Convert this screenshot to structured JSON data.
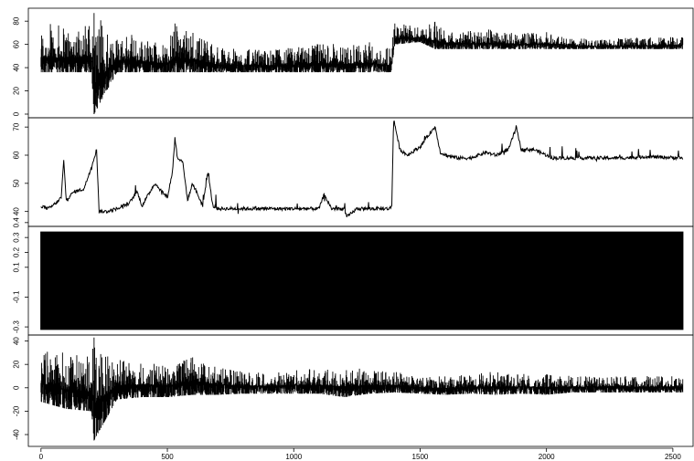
{
  "chart_data": {
    "type": "line",
    "title": "",
    "xlabel": "",
    "ylabel": "",
    "shared_x": {
      "xlim": [
        -50,
        2580
      ],
      "ticks": [
        0,
        500,
        1000,
        1500,
        2000,
        2500
      ],
      "tick_labels": [
        "0",
        "500",
        "1000",
        "1500",
        "2000",
        "2500"
      ]
    },
    "line_color": "#000000",
    "grid": false,
    "panels": [
      {
        "ylim": [
          0,
          88
        ],
        "yticks": [
          0,
          20,
          40,
          60,
          80
        ],
        "ytick_labels": [
          "0",
          "20",
          "40",
          "60",
          "80"
        ],
        "description_values": {
          "x": [
            0,
            100,
            200,
            210,
            300,
            400,
            500,
            530,
            560,
            600,
            700,
            800,
            900,
            1000,
            1100,
            1200,
            1300,
            1385,
            1400,
            1500,
            1560,
            1600,
            1700,
            1800,
            1900,
            2000,
            2100,
            2200,
            2300,
            2400,
            2540
          ],
          "low": [
            36,
            36,
            36,
            0,
            36,
            36,
            36,
            36,
            36,
            36,
            36,
            36,
            36,
            36,
            36,
            36,
            36,
            36,
            60,
            62,
            56,
            56,
            56,
            56,
            56,
            56,
            56,
            56,
            56,
            56,
            56
          ],
          "high": [
            78,
            78,
            80,
            87,
            72,
            66,
            62,
            78,
            72,
            74,
            58,
            56,
            56,
            58,
            62,
            60,
            62,
            56,
            78,
            76,
            80,
            74,
            72,
            74,
            70,
            72,
            66,
            64,
            66,
            66,
            68
          ]
        }
      },
      {
        "ylim": [
          36,
          72
        ],
        "yticks": [
          40,
          50,
          60,
          70
        ],
        "ytick_labels": [
          "40",
          "50",
          "60",
          "70"
        ],
        "x": [
          0,
          30,
          60,
          80,
          90,
          100,
          130,
          170,
          200,
          220,
          230,
          260,
          300,
          350,
          380,
          400,
          450,
          500,
          520,
          530,
          540,
          560,
          580,
          600,
          640,
          660,
          680,
          700,
          800,
          900,
          1000,
          1100,
          1120,
          1150,
          1200,
          1210,
          1250,
          1300,
          1380,
          1388,
          1395,
          1420,
          1450,
          1500,
          1540,
          1560,
          1580,
          1600,
          1650,
          1700,
          1730,
          1760,
          1800,
          1850,
          1880,
          1900,
          1950,
          2000,
          2020,
          2050,
          2100,
          2200,
          2300,
          2400,
          2540
        ],
        "y": [
          42,
          41,
          43,
          45,
          58,
          44,
          47,
          48,
          56,
          62,
          40,
          40,
          41,
          43,
          47,
          42,
          50,
          45,
          54,
          66,
          59,
          58,
          44,
          50,
          42,
          54,
          42,
          41,
          41,
          41,
          41,
          41,
          46,
          41,
          41,
          38,
          41,
          41,
          41,
          42,
          73,
          62,
          60,
          63,
          68,
          70,
          61,
          60,
          59,
          59,
          60,
          61,
          60,
          62,
          70,
          62,
          62,
          60,
          59,
          59,
          59,
          59,
          59,
          59.5,
          59
        ]
      },
      {
        "ylim": [
          -0.33,
          0.35
        ],
        "yticks": [
          -0.3,
          -0.1,
          0.1,
          0.2,
          0.3,
          0.4
        ],
        "ytick_labels": [
          "-0.3",
          "-0.1",
          "0.1",
          "0.2",
          "0.3",
          "0.4"
        ],
        "description_values": {
          "x": [
            0,
            2540
          ],
          "low": [
            -0.32,
            -0.32
          ],
          "high": [
            0.34,
            0.34
          ]
        }
      },
      {
        "ylim": [
          -47,
          42
        ],
        "yticks": [
          -40,
          -20,
          0,
          20,
          40
        ],
        "ytick_labels": [
          "-40",
          "-20",
          "0",
          "20",
          "40"
        ],
        "description_values": {
          "x": [
            0,
            100,
            200,
            210,
            300,
            400,
            500,
            600,
            700,
            800,
            900,
            1000,
            1100,
            1200,
            1300,
            1400,
            1500,
            1600,
            1700,
            1800,
            1900,
            2000,
            2100,
            2200,
            2300,
            2400,
            2540
          ],
          "low": [
            -12,
            -18,
            -20,
            -45,
            -10,
            -8,
            -8,
            -6,
            -6,
            -5,
            -5,
            -5,
            -5,
            -8,
            -5,
            -4,
            -5,
            -6,
            -5,
            -6,
            -5,
            -6,
            -4,
            -4,
            -4,
            -4,
            -4
          ],
          "high": [
            34,
            30,
            28,
            43,
            24,
            22,
            20,
            26,
            20,
            14,
            14,
            16,
            16,
            18,
            16,
            14,
            10,
            10,
            12,
            14,
            12,
            12,
            10,
            10,
            10,
            10,
            10
          ]
        }
      }
    ]
  }
}
